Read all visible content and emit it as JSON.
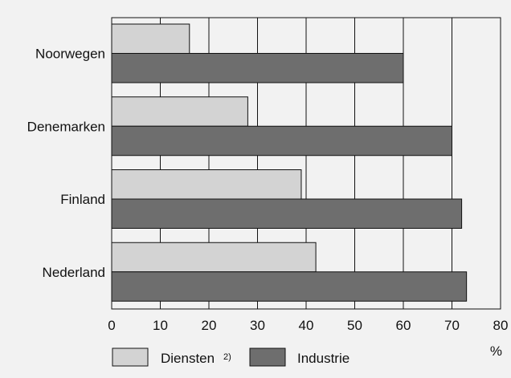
{
  "chart_data": {
    "type": "bar",
    "orientation": "horizontal",
    "title": "",
    "categories": [
      "Noorwegen",
      "Denemarken",
      "Finland",
      "Nederland"
    ],
    "series": [
      {
        "name": "Diensten",
        "name_suffix": "2)",
        "values": [
          16,
          28,
          39,
          42
        ],
        "color": "#d3d3d3"
      },
      {
        "name": "Industrie",
        "values": [
          60,
          70,
          72,
          73
        ],
        "color": "#6e6e6e"
      }
    ],
    "x_ticks": [
      "0",
      "10",
      "20",
      "30",
      "40",
      "50",
      "60",
      "70",
      "80"
    ],
    "xlim": [
      0,
      80
    ],
    "xlabel": "%",
    "grid": true,
    "legend_position": "bottom"
  }
}
